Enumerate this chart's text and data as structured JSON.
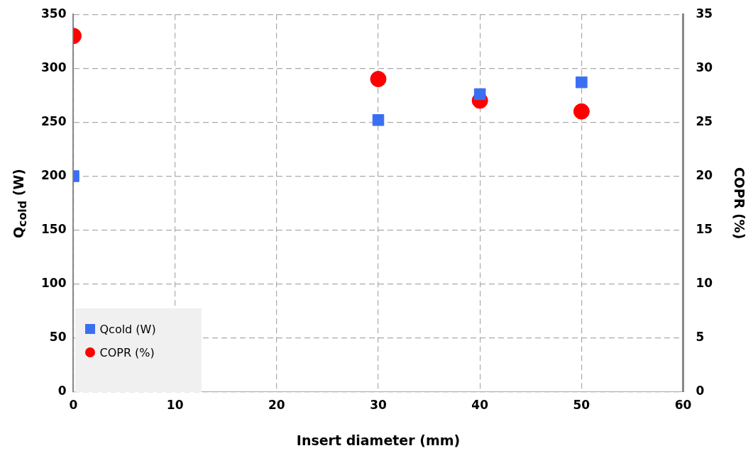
{
  "chart_data": {
    "type": "scatter",
    "xlabel": "Insert diameter (mm)",
    "ylabel": "Q$_{cold}$ (W)",
    "y2label": "COPR (%)",
    "xlim": [
      0,
      60
    ],
    "xticks": [
      0,
      10,
      20,
      30,
      40,
      50,
      60
    ],
    "ylim": [
      0,
      350
    ],
    "yticks": [
      0,
      50,
      100,
      150,
      200,
      250,
      300,
      350
    ],
    "y2lim": [
      0,
      35
    ],
    "y2ticks": [
      0,
      5,
      10,
      15,
      20,
      25,
      30,
      35
    ],
    "grid": true,
    "legend": "bottom left",
    "series": [
      {
        "name": "Qcold (W)",
        "color": "#3a6ff2",
        "marker": "square",
        "x": [
          0,
          30,
          40,
          50
        ],
        "values": [
          200,
          252,
          276,
          287
        ]
      },
      {
        "name": "COPR (%)",
        "color": "#ff0000",
        "marker": "circle",
        "axis": "y2",
        "x": [
          0,
          30,
          40,
          50
        ],
        "values": [
          33,
          29,
          27,
          26
        ]
      }
    ]
  }
}
